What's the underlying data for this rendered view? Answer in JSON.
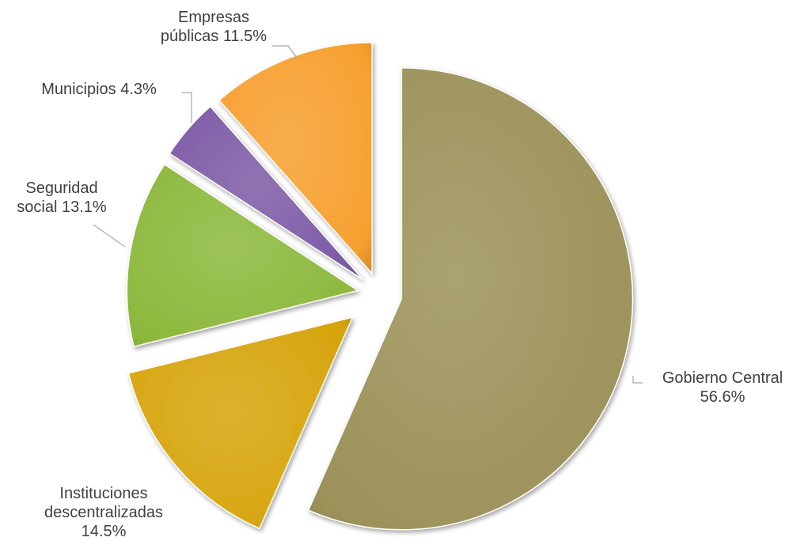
{
  "chart_data": {
    "type": "pie",
    "exploded": true,
    "legend": "none",
    "slices": [
      {
        "label_lines": [
          "Gobierno Central",
          "56.6%"
        ],
        "category": "Gobierno Central",
        "value": 56.6,
        "color": "#9c9159"
      },
      {
        "label_lines": [
          "Instituciones",
          "descentralizadas",
          "14.5%"
        ],
        "category": "Instituciones descentralizadas",
        "value": 14.5,
        "color": "#d6a40c"
      },
      {
        "label_lines": [
          "Seguridad",
          "social 13.1%"
        ],
        "category": "Seguridad social",
        "value": 13.1,
        "color": "#8cb83c"
      },
      {
        "label_lines": [
          "Municipios 4.3%"
        ],
        "category": "Municipios",
        "value": 4.3,
        "color": "#7d5ba6"
      },
      {
        "label_lines": [
          "Empresas",
          "públicas 11.5%"
        ],
        "category": "Empresas públicas",
        "value": 11.5,
        "color": "#f7a030"
      }
    ]
  }
}
